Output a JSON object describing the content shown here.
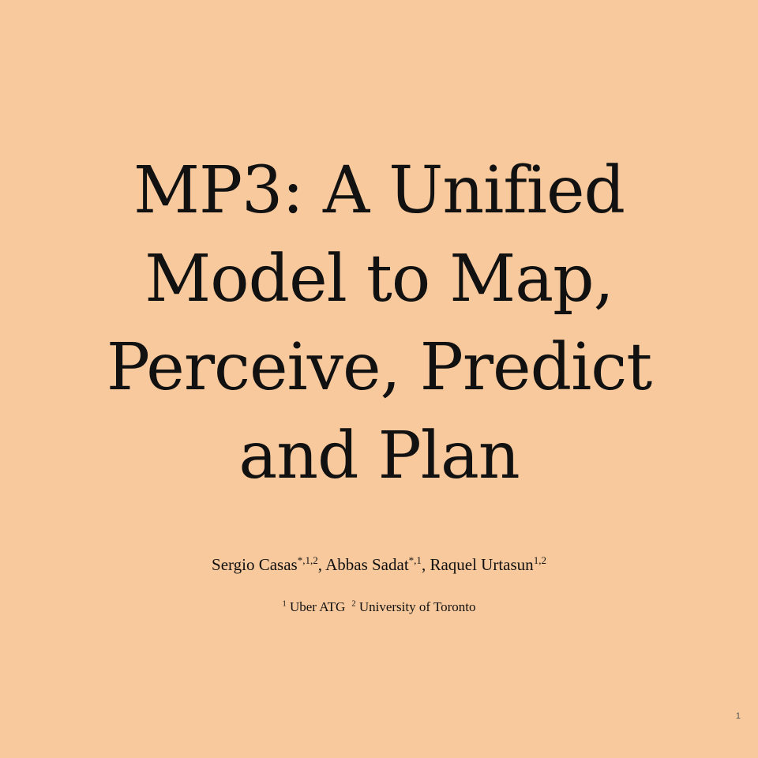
{
  "slide": {
    "background_color": "#f8c99d",
    "title_lines": [
      "MP3: A Unified",
      "Model to Map,",
      "Perceive, Predict",
      "and Plan"
    ],
    "authors": [
      {
        "name": "Sergio Casas",
        "marks": "*,1,2",
        "separator": ", "
      },
      {
        "name": "Abbas Sadat",
        "marks": "*,1",
        "separator": ", "
      },
      {
        "name": "Raquel Urtasun",
        "marks": "1,2",
        "separator": ""
      }
    ],
    "affiliations": [
      {
        "number": "1",
        "name": " Uber ATG"
      },
      {
        "number": "2",
        "name": " University of Toronto"
      }
    ],
    "page_number": "1"
  }
}
